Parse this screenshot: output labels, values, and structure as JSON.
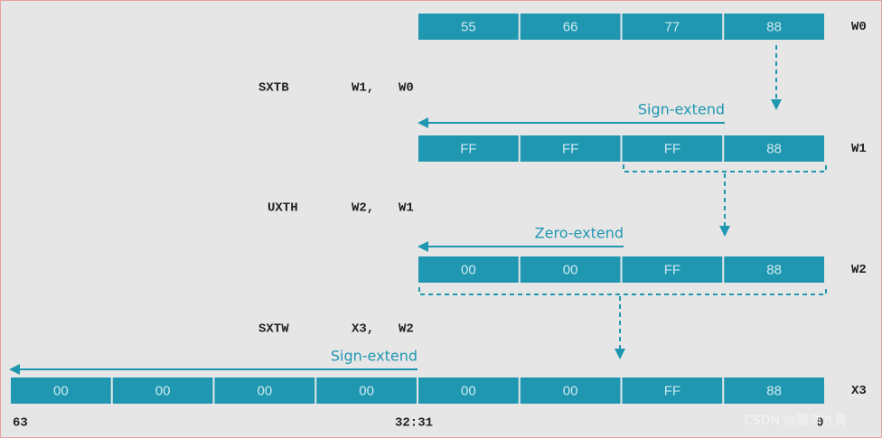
{
  "registers": [
    {
      "name": "W0",
      "cells": [
        "55",
        "66",
        "77",
        "88"
      ]
    },
    {
      "name": "W1",
      "cells": [
        "FF",
        "FF",
        "FF",
        "88"
      ]
    },
    {
      "name": "W2",
      "cells": [
        "00",
        "00",
        "FF",
        "88"
      ]
    },
    {
      "name": "X3",
      "cells": [
        "00",
        "00",
        "00",
        "00",
        "00",
        "00",
        "FF",
        "88"
      ]
    }
  ],
  "instructions": [
    {
      "op": "SXTB",
      "args": [
        "W1,",
        "W0"
      ]
    },
    {
      "op": "UXTH",
      "args": [
        "W2,",
        "W1"
      ]
    },
    {
      "op": "SXTW",
      "args": [
        "X3,",
        "W2"
      ]
    }
  ],
  "extends": [
    "Sign-extend",
    "Zero-extend",
    "Sign-extend"
  ],
  "bit_labels": [
    "63",
    "32:31",
    "0"
  ],
  "watermark": "CSDN @鹏洋九霄"
}
